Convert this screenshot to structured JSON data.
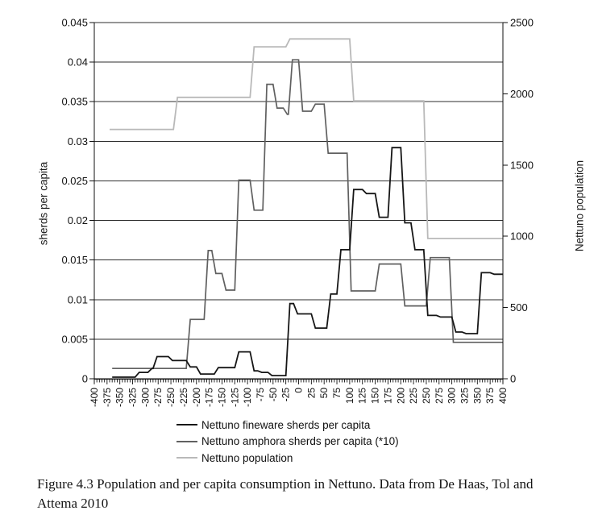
{
  "figure": {
    "caption_line1": "Figure 4.3  Population and per capita consumption in Nettuno. Data from De Haas, Tol and",
    "caption_line2": "Attema 2010"
  },
  "chart_data": {
    "type": "line",
    "title": "",
    "grid": true,
    "legend_position": "bottom",
    "x_axis": {
      "min": -400,
      "max": 400,
      "major_step": 25,
      "minor_step": 5,
      "tick_labels": [
        "-400",
        "-375",
        "-350",
        "-325",
        "-300",
        "-275",
        "-250",
        "-225",
        "-200",
        "-175",
        "-150",
        "-125",
        "-100",
        "-75",
        "-50",
        "-25",
        "0",
        "25",
        "50",
        "75",
        "100",
        "125",
        "150",
        "175",
        "200",
        "225",
        "250",
        "275",
        "300",
        "325",
        "350",
        "375",
        "400"
      ]
    },
    "y_left": {
      "label": "sherds per capita",
      "min": 0,
      "max": 0.045,
      "step": 0.005,
      "tick_labels": [
        "0",
        "0.005",
        "0.01",
        "0.015",
        "0.02",
        "0.025",
        "0.03",
        "0.035",
        "0.04",
        "0.045"
      ]
    },
    "y_right": {
      "label": "Nettuno population",
      "min": 0,
      "max": 2500,
      "step": 500,
      "tick_labels": [
        "0",
        "500",
        "1000",
        "1500",
        "2000",
        "2500"
      ]
    },
    "series": [
      {
        "name": "Nettuno fineware sherds per capita",
        "axis": "left",
        "color": "#161616",
        "width": 1.8,
        "end_year": 400,
        "steps": [
          [
            -365,
            0.0002
          ],
          [
            -320,
            0.0008
          ],
          [
            -295,
            0.0013
          ],
          [
            -285,
            0.0028
          ],
          [
            -255,
            0.0023
          ],
          [
            -220,
            0.0015
          ],
          [
            -200,
            0.0006
          ],
          [
            -165,
            0.0014
          ],
          [
            -125,
            0.0034
          ],
          [
            -95,
            0.001
          ],
          [
            -80,
            0.0008
          ],
          [
            -60,
            0.0004
          ],
          [
            -25,
            0.0095
          ],
          [
            -10,
            0.0082
          ],
          [
            25,
            0.0064
          ],
          [
            55,
            0.0107
          ],
          [
            75,
            0.0163
          ],
          [
            100,
            0.0239
          ],
          [
            125,
            0.0234
          ],
          [
            150,
            0.0204
          ],
          [
            175,
            0.0292
          ],
          [
            200,
            0.0197
          ],
          [
            220,
            0.0163
          ],
          [
            245,
            0.008
          ],
          [
            270,
            0.0078
          ],
          [
            300,
            0.0059
          ],
          [
            320,
            0.0057
          ],
          [
            350,
            0.0134
          ],
          [
            375,
            0.0132
          ]
        ]
      },
      {
        "name": "Nettuno amphora sherds per capita (*10)",
        "axis": "left",
        "color": "#606060",
        "width": 1.7,
        "end_year": 400,
        "steps": [
          [
            -365,
            0.0013
          ],
          [
            -220,
            0.0075
          ],
          [
            -185,
            0.0162
          ],
          [
            -170,
            0.0133
          ],
          [
            -150,
            0.0112
          ],
          [
            -125,
            0.0251
          ],
          [
            -95,
            0.0213
          ],
          [
            -70,
            0.0372
          ],
          [
            -50,
            0.0342
          ],
          [
            -30,
            0.0334
          ],
          [
            -20,
            0.0403
          ],
          [
            0,
            0.0338
          ],
          [
            25,
            0.0347
          ],
          [
            50,
            0.0285
          ],
          [
            95,
            0.0111
          ],
          [
            150,
            0.0145
          ],
          [
            200,
            0.0092
          ],
          [
            250,
            0.0153
          ],
          [
            295,
            0.0046
          ]
        ]
      },
      {
        "name": "Nettuno population",
        "axis": "right",
        "color": "#b9b9b9",
        "width": 1.8,
        "end_year": 400,
        "steps": [
          [
            -370,
            1750
          ],
          [
            -245,
            1975
          ],
          [
            -95,
            2330
          ],
          [
            -25,
            2385
          ],
          [
            100,
            1950
          ],
          [
            245,
            985
          ]
        ]
      }
    ]
  }
}
